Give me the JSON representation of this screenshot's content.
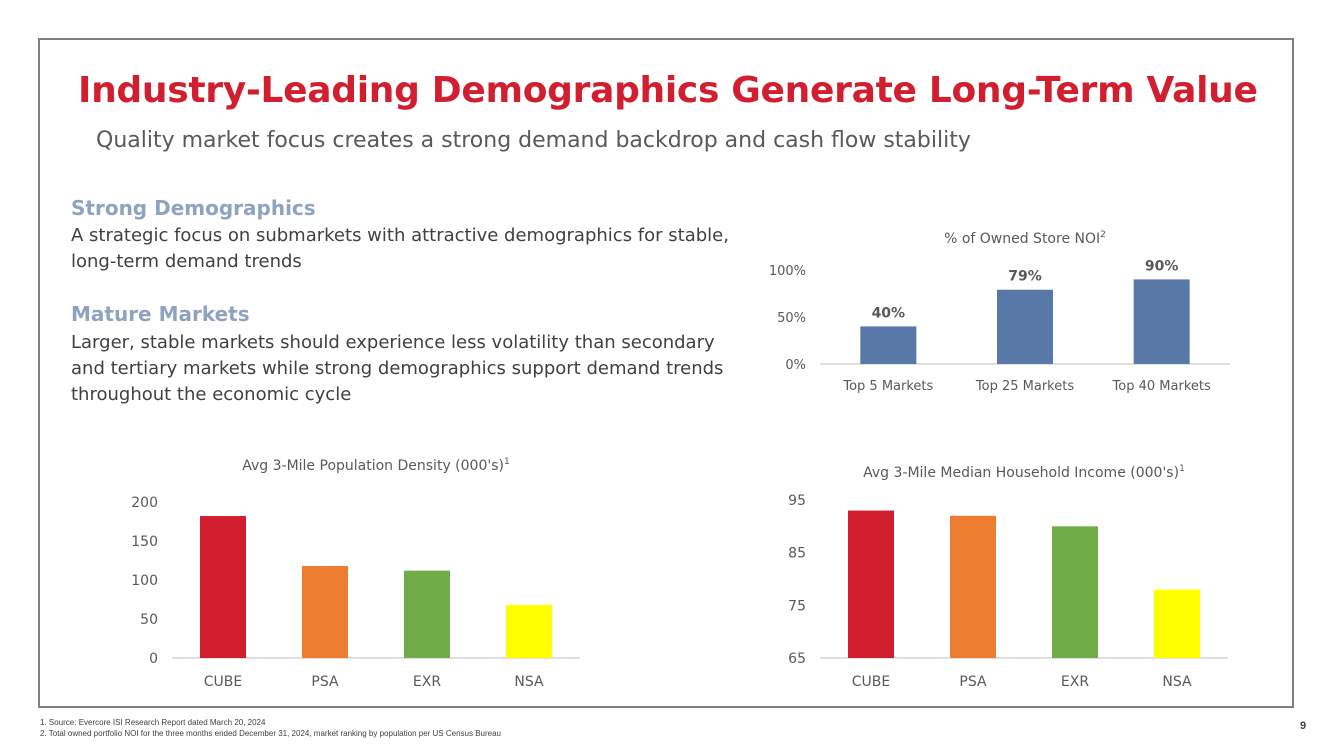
{
  "header": {
    "title": "Industry-Leading Demographics Generate Long-Term Value",
    "subtitle": "Quality market focus creates a strong demand backdrop and cash flow stability"
  },
  "sections": [
    {
      "heading": "Strong Demographics",
      "body": "A strategic focus on submarkets with attractive demographics for stable, long-term demand trends"
    },
    {
      "heading": "Mature Markets",
      "body": "Larger, stable markets should experience less volatility than secondary and tertiary markets while strong demographics support demand trends throughout the economic cycle"
    }
  ],
  "chart_data": [
    {
      "id": "noi",
      "type": "bar",
      "title": "% of Owned Store NOI",
      "title_sup": "2",
      "categories": [
        "Top 5 Markets",
        "Top 25 Markets",
        "Top 40 Markets"
      ],
      "values": [
        40,
        79,
        90
      ],
      "data_labels": [
        "40%",
        "79%",
        "90%"
      ],
      "ylim": [
        0,
        100
      ],
      "yticks": [
        0,
        50,
        100
      ],
      "ytick_labels": [
        "0%",
        "50%",
        "100%"
      ],
      "colors": [
        "#5878a8",
        "#5878a8",
        "#5878a8"
      ],
      "grid": false
    },
    {
      "id": "density",
      "type": "bar",
      "title": "Avg 3-Mile Population Density (000's)",
      "title_sup": "1",
      "categories": [
        "CUBE",
        "PSA",
        "EXR",
        "NSA"
      ],
      "values": [
        182,
        118,
        112,
        68
      ],
      "ylim": [
        0,
        200
      ],
      "yticks": [
        0,
        50,
        100,
        150,
        200
      ],
      "ytick_labels": [
        "0",
        "50",
        "100",
        "150",
        "200"
      ],
      "colors": [
        "#d11f2f",
        "#ed7d31",
        "#70ad47",
        "#ffff00"
      ],
      "grid": false
    },
    {
      "id": "income",
      "type": "bar",
      "title": "Avg 3-Mile Median Household Income (000's)",
      "title_sup": "1",
      "categories": [
        "CUBE",
        "PSA",
        "EXR",
        "NSA"
      ],
      "values": [
        93,
        92,
        90,
        78
      ],
      "ylim": [
        65,
        95
      ],
      "yticks": [
        65,
        75,
        85,
        95
      ],
      "ytick_labels": [
        "65",
        "75",
        "85",
        "95"
      ],
      "colors": [
        "#d11f2f",
        "#ed7d31",
        "#70ad47",
        "#ffff00"
      ],
      "grid": false
    }
  ],
  "footnotes": [
    "1.   Source: Evercore ISI Research Report dated March 20, 2024",
    "2.   Total owned portfolio NOI for the three months ended December 31, 2024, market ranking by population per US Census Bureau"
  ],
  "page_number": "9"
}
